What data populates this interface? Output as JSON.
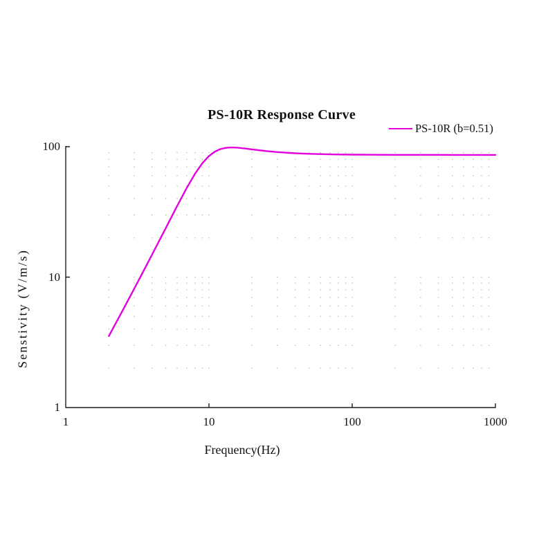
{
  "page": {
    "background_color": "#ffffff"
  },
  "chart_data": {
    "type": "line",
    "title": "PS-10R Response Curve",
    "xlabel": "Frequency(Hz)",
    "ylabel": "Senstivity  (V/m/s)",
    "x_scale": "log",
    "y_scale": "log",
    "xlim": [
      1,
      1000
    ],
    "ylim": [
      1,
      100
    ],
    "x_tick_labels": [
      "1",
      "10",
      "100",
      "1000"
    ],
    "x_tick_values": [
      1,
      10,
      100,
      1000
    ],
    "y_tick_labels": [
      "100",
      "10",
      "1"
    ],
    "y_tick_values": [
      100,
      10,
      1
    ],
    "grid": "dots-at-minor-log-intersections",
    "grid_dot_color": "#b5b5b5",
    "axis_color": "#1c1c1c",
    "legend_position": "top-right",
    "series": [
      {
        "name": "PS-10R (b=0.51)",
        "color": "#e202de",
        "natural_frequency_hz": 10,
        "damping_b": 0.51,
        "plateau_sensitivity": 86.5,
        "peak_sensitivity": 98.5,
        "x": [
          2,
          2.5,
          3,
          3.5,
          4,
          5,
          6,
          7,
          8,
          9,
          10,
          11,
          12,
          13,
          14,
          15,
          16,
          18,
          20,
          25,
          30,
          40,
          50,
          70,
          100,
          150,
          200,
          300,
          500,
          700,
          1000
        ],
        "y": [
          3.53,
          5.57,
          8.11,
          11.19,
          14.82,
          23.84,
          35.17,
          48.3,
          62.07,
          74.74,
          84.8,
          91.69,
          95.76,
          97.8,
          98.53,
          98.51,
          98.08,
          96.77,
          95.37,
          92.63,
          90.89,
          89.03,
          88.14,
          87.34,
          86.91,
          86.68,
          86.6,
          86.55,
          86.52,
          86.51,
          86.51
        ]
      }
    ]
  }
}
